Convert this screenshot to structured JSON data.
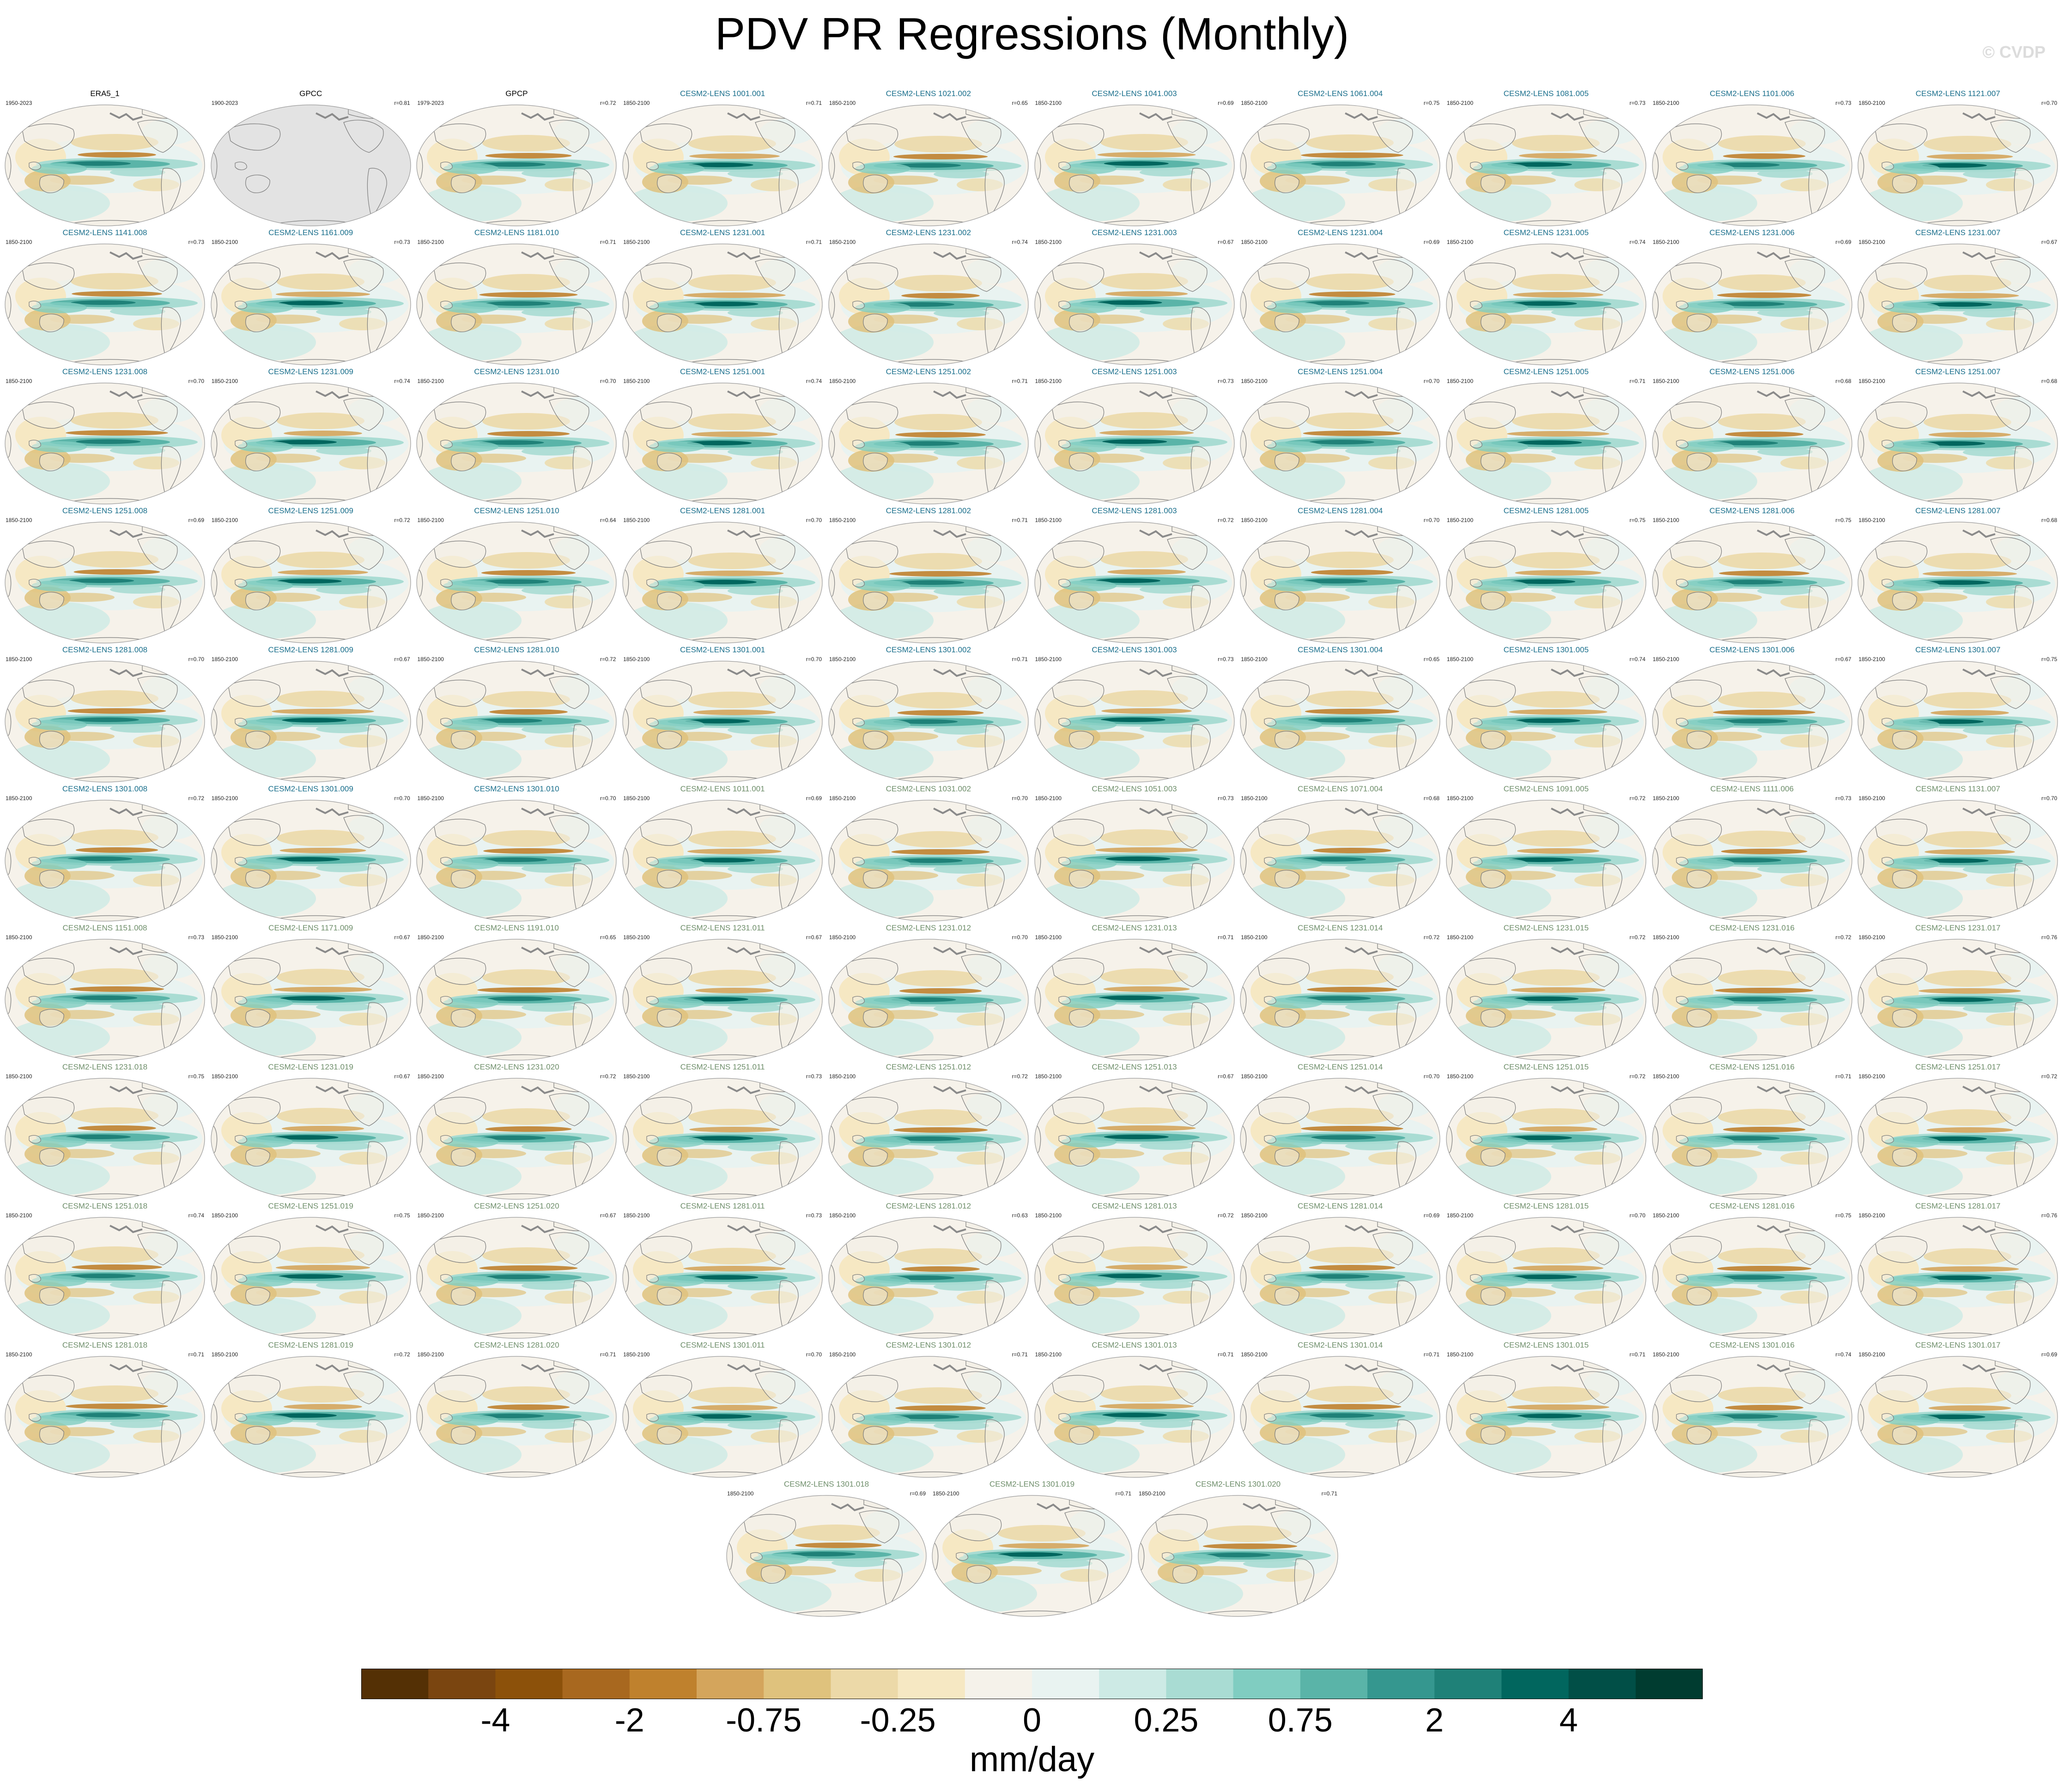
{
  "chart_data": {
    "type": "map-panels",
    "title": "PDV PR Regressions (Monthly)",
    "watermark": "© CVDP",
    "colorbar": {
      "units": "mm/day",
      "tick_labels": [
        "-4",
        "-2",
        "-0.75",
        "-0.25",
        "0",
        "0.25",
        "0.75",
        "2",
        "4"
      ],
      "colors": [
        "#543005",
        "#7a4510",
        "#8c510a",
        "#a8681f",
        "#bf812d",
        "#d4a55c",
        "#dfc27d",
        "#ecd9a8",
        "#f6e8c3",
        "#f5f2ea",
        "#e9f3f1",
        "#cdeae5",
        "#a9dcd3",
        "#80cdc1",
        "#5ab4a8",
        "#35978f",
        "#1f8178",
        "#01665e",
        "#014f47",
        "#003c30"
      ]
    },
    "panels": [
      {
        "title": "ERA5_1",
        "dates": "1950-2023",
        "r": "",
        "group": "obs"
      },
      {
        "title": "GPCC",
        "dates": "1900-2023",
        "r": "r=0.81",
        "group": "obs",
        "missing": true
      },
      {
        "title": "GPCP",
        "dates": "1979-2023",
        "r": "r=0.72",
        "group": "obs"
      },
      {
        "title": "CESM2-LENS 1001.001",
        "dates": "1850-2100",
        "r": "r=0.71",
        "group": "a"
      },
      {
        "title": "CESM2-LENS 1021.002",
        "dates": "1850-2100",
        "r": "r=0.65",
        "group": "a"
      },
      {
        "title": "CESM2-LENS 1041.003",
        "dates": "1850-2100",
        "r": "r=0.69",
        "group": "a"
      },
      {
        "title": "CESM2-LENS 1061.004",
        "dates": "1850-2100",
        "r": "r=0.75",
        "group": "a"
      },
      {
        "title": "CESM2-LENS 1081.005",
        "dates": "1850-2100",
        "r": "r=0.73",
        "group": "a"
      },
      {
        "title": "CESM2-LENS 1101.006",
        "dates": "1850-2100",
        "r": "r=0.73",
        "group": "a"
      },
      {
        "title": "CESM2-LENS 1121.007",
        "dates": "1850-2100",
        "r": "r=0.70",
        "group": "a"
      },
      {
        "title": "CESM2-LENS 1141.008",
        "dates": "1850-2100",
        "r": "r=0.73",
        "group": "a"
      },
      {
        "title": "CESM2-LENS 1161.009",
        "dates": "1850-2100",
        "r": "r=0.73",
        "group": "a"
      },
      {
        "title": "CESM2-LENS 1181.010",
        "dates": "1850-2100",
        "r": "r=0.71",
        "group": "a"
      },
      {
        "title": "CESM2-LENS 1231.001",
        "dates": "1850-2100",
        "r": "r=0.71",
        "group": "a"
      },
      {
        "title": "CESM2-LENS 1231.002",
        "dates": "1850-2100",
        "r": "r=0.74",
        "group": "a"
      },
      {
        "title": "CESM2-LENS 1231.003",
        "dates": "1850-2100",
        "r": "r=0.67",
        "group": "a"
      },
      {
        "title": "CESM2-LENS 1231.004",
        "dates": "1850-2100",
        "r": "r=0.69",
        "group": "a"
      },
      {
        "title": "CESM2-LENS 1231.005",
        "dates": "1850-2100",
        "r": "r=0.74",
        "group": "a"
      },
      {
        "title": "CESM2-LENS 1231.006",
        "dates": "1850-2100",
        "r": "r=0.69",
        "group": "a"
      },
      {
        "title": "CESM2-LENS 1231.007",
        "dates": "1850-2100",
        "r": "r=0.67",
        "group": "a"
      },
      {
        "title": "CESM2-LENS 1231.008",
        "dates": "1850-2100",
        "r": "r=0.70",
        "group": "a"
      },
      {
        "title": "CESM2-LENS 1231.009",
        "dates": "1850-2100",
        "r": "r=0.74",
        "group": "a"
      },
      {
        "title": "CESM2-LENS 1231.010",
        "dates": "1850-2100",
        "r": "r=0.70",
        "group": "a"
      },
      {
        "title": "CESM2-LENS 1251.001",
        "dates": "1850-2100",
        "r": "r=0.74",
        "group": "a"
      },
      {
        "title": "CESM2-LENS 1251.002",
        "dates": "1850-2100",
        "r": "r=0.71",
        "group": "a"
      },
      {
        "title": "CESM2-LENS 1251.003",
        "dates": "1850-2100",
        "r": "r=0.73",
        "group": "a"
      },
      {
        "title": "CESM2-LENS 1251.004",
        "dates": "1850-2100",
        "r": "r=0.70",
        "group": "a"
      },
      {
        "title": "CESM2-LENS 1251.005",
        "dates": "1850-2100",
        "r": "r=0.71",
        "group": "a"
      },
      {
        "title": "CESM2-LENS 1251.006",
        "dates": "1850-2100",
        "r": "r=0.68",
        "group": "a"
      },
      {
        "title": "CESM2-LENS 1251.007",
        "dates": "1850-2100",
        "r": "r=0.68",
        "group": "a"
      },
      {
        "title": "CESM2-LENS 1251.008",
        "dates": "1850-2100",
        "r": "r=0.69",
        "group": "a"
      },
      {
        "title": "CESM2-LENS 1251.009",
        "dates": "1850-2100",
        "r": "r=0.72",
        "group": "a"
      },
      {
        "title": "CESM2-LENS 1251.010",
        "dates": "1850-2100",
        "r": "r=0.64",
        "group": "a"
      },
      {
        "title": "CESM2-LENS 1281.001",
        "dates": "1850-2100",
        "r": "r=0.70",
        "group": "a"
      },
      {
        "title": "CESM2-LENS 1281.002",
        "dates": "1850-2100",
        "r": "r=0.71",
        "group": "a"
      },
      {
        "title": "CESM2-LENS 1281.003",
        "dates": "1850-2100",
        "r": "r=0.72",
        "group": "a"
      },
      {
        "title": "CESM2-LENS 1281.004",
        "dates": "1850-2100",
        "r": "r=0.70",
        "group": "a"
      },
      {
        "title": "CESM2-LENS 1281.005",
        "dates": "1850-2100",
        "r": "r=0.75",
        "group": "a"
      },
      {
        "title": "CESM2-LENS 1281.006",
        "dates": "1850-2100",
        "r": "r=0.75",
        "group": "a"
      },
      {
        "title": "CESM2-LENS 1281.007",
        "dates": "1850-2100",
        "r": "r=0.68",
        "group": "a"
      },
      {
        "title": "CESM2-LENS 1281.008",
        "dates": "1850-2100",
        "r": "r=0.70",
        "group": "a"
      },
      {
        "title": "CESM2-LENS 1281.009",
        "dates": "1850-2100",
        "r": "r=0.67",
        "group": "a"
      },
      {
        "title": "CESM2-LENS 1281.010",
        "dates": "1850-2100",
        "r": "r=0.72",
        "group": "a"
      },
      {
        "title": "CESM2-LENS 1301.001",
        "dates": "1850-2100",
        "r": "r=0.70",
        "group": "a"
      },
      {
        "title": "CESM2-LENS 1301.002",
        "dates": "1850-2100",
        "r": "r=0.71",
        "group": "a"
      },
      {
        "title": "CESM2-LENS 1301.003",
        "dates": "1850-2100",
        "r": "r=0.73",
        "group": "a"
      },
      {
        "title": "CESM2-LENS 1301.004",
        "dates": "1850-2100",
        "r": "r=0.65",
        "group": "a"
      },
      {
        "title": "CESM2-LENS 1301.005",
        "dates": "1850-2100",
        "r": "r=0.74",
        "group": "a"
      },
      {
        "title": "CESM2-LENS 1301.006",
        "dates": "1850-2100",
        "r": "r=0.67",
        "group": "a"
      },
      {
        "title": "CESM2-LENS 1301.007",
        "dates": "1850-2100",
        "r": "r=0.75",
        "group": "a"
      },
      {
        "title": "CESM2-LENS 1301.008",
        "dates": "1850-2100",
        "r": "r=0.72",
        "group": "a"
      },
      {
        "title": "CESM2-LENS 1301.009",
        "dates": "1850-2100",
        "r": "r=0.70",
        "group": "a"
      },
      {
        "title": "CESM2-LENS 1301.010",
        "dates": "1850-2100",
        "r": "r=0.70",
        "group": "a"
      },
      {
        "title": "CESM2-LENS 1011.001",
        "dates": "1850-2100",
        "r": "r=0.69",
        "group": "b"
      },
      {
        "title": "CESM2-LENS 1031.002",
        "dates": "1850-2100",
        "r": "r=0.70",
        "group": "b"
      },
      {
        "title": "CESM2-LENS 1051.003",
        "dates": "1850-2100",
        "r": "r=0.73",
        "group": "b"
      },
      {
        "title": "CESM2-LENS 1071.004",
        "dates": "1850-2100",
        "r": "r=0.68",
        "group": "b"
      },
      {
        "title": "CESM2-LENS 1091.005",
        "dates": "1850-2100",
        "r": "r=0.72",
        "group": "b"
      },
      {
        "title": "CESM2-LENS 1111.006",
        "dates": "1850-2100",
        "r": "r=0.73",
        "group": "b"
      },
      {
        "title": "CESM2-LENS 1131.007",
        "dates": "1850-2100",
        "r": "r=0.70",
        "group": "b"
      },
      {
        "title": "CESM2-LENS 1151.008",
        "dates": "1850-2100",
        "r": "r=0.73",
        "group": "b"
      },
      {
        "title": "CESM2-LENS 1171.009",
        "dates": "1850-2100",
        "r": "r=0.67",
        "group": "b"
      },
      {
        "title": "CESM2-LENS 1191.010",
        "dates": "1850-2100",
        "r": "r=0.65",
        "group": "b"
      },
      {
        "title": "CESM2-LENS 1231.011",
        "dates": "1850-2100",
        "r": "r=0.67",
        "group": "b"
      },
      {
        "title": "CESM2-LENS 1231.012",
        "dates": "1850-2100",
        "r": "r=0.70",
        "group": "b"
      },
      {
        "title": "CESM2-LENS 1231.013",
        "dates": "1850-2100",
        "r": "r=0.71",
        "group": "b"
      },
      {
        "title": "CESM2-LENS 1231.014",
        "dates": "1850-2100",
        "r": "r=0.72",
        "group": "b"
      },
      {
        "title": "CESM2-LENS 1231.015",
        "dates": "1850-2100",
        "r": "r=0.72",
        "group": "b"
      },
      {
        "title": "CESM2-LENS 1231.016",
        "dates": "1850-2100",
        "r": "r=0.72",
        "group": "b"
      },
      {
        "title": "CESM2-LENS 1231.017",
        "dates": "1850-2100",
        "r": "r=0.76",
        "group": "b"
      },
      {
        "title": "CESM2-LENS 1231.018",
        "dates": "1850-2100",
        "r": "r=0.75",
        "group": "b"
      },
      {
        "title": "CESM2-LENS 1231.019",
        "dates": "1850-2100",
        "r": "r=0.67",
        "group": "b"
      },
      {
        "title": "CESM2-LENS 1231.020",
        "dates": "1850-2100",
        "r": "r=0.72",
        "group": "b"
      },
      {
        "title": "CESM2-LENS 1251.011",
        "dates": "1850-2100",
        "r": "r=0.73",
        "group": "b"
      },
      {
        "title": "CESM2-LENS 1251.012",
        "dates": "1850-2100",
        "r": "r=0.72",
        "group": "b"
      },
      {
        "title": "CESM2-LENS 1251.013",
        "dates": "1850-2100",
        "r": "r=0.67",
        "group": "b"
      },
      {
        "title": "CESM2-LENS 1251.014",
        "dates": "1850-2100",
        "r": "r=0.70",
        "group": "b"
      },
      {
        "title": "CESM2-LENS 1251.015",
        "dates": "1850-2100",
        "r": "r=0.72",
        "group": "b"
      },
      {
        "title": "CESM2-LENS 1251.016",
        "dates": "1850-2100",
        "r": "r=0.71",
        "group": "b"
      },
      {
        "title": "CESM2-LENS 1251.017",
        "dates": "1850-2100",
        "r": "r=0.72",
        "group": "b"
      },
      {
        "title": "CESM2-LENS 1251.018",
        "dates": "1850-2100",
        "r": "r=0.74",
        "group": "b"
      },
      {
        "title": "CESM2-LENS 1251.019",
        "dates": "1850-2100",
        "r": "r=0.75",
        "group": "b"
      },
      {
        "title": "CESM2-LENS 1251.020",
        "dates": "1850-2100",
        "r": "r=0.67",
        "group": "b"
      },
      {
        "title": "CESM2-LENS 1281.011",
        "dates": "1850-2100",
        "r": "r=0.73",
        "group": "b"
      },
      {
        "title": "CESM2-LENS 1281.012",
        "dates": "1850-2100",
        "r": "r=0.63",
        "group": "b"
      },
      {
        "title": "CESM2-LENS 1281.013",
        "dates": "1850-2100",
        "r": "r=0.72",
        "group": "b"
      },
      {
        "title": "CESM2-LENS 1281.014",
        "dates": "1850-2100",
        "r": "r=0.69",
        "group": "b"
      },
      {
        "title": "CESM2-LENS 1281.015",
        "dates": "1850-2100",
        "r": "r=0.70",
        "group": "b"
      },
      {
        "title": "CESM2-LENS 1281.016",
        "dates": "1850-2100",
        "r": "r=0.75",
        "group": "b"
      },
      {
        "title": "CESM2-LENS 1281.017",
        "dates": "1850-2100",
        "r": "r=0.76",
        "group": "b"
      },
      {
        "title": "CESM2-LENS 1281.018",
        "dates": "1850-2100",
        "r": "r=0.71",
        "group": "b"
      },
      {
        "title": "CESM2-LENS 1281.019",
        "dates": "1850-2100",
        "r": "r=0.72",
        "group": "b"
      },
      {
        "title": "CESM2-LENS 1281.020",
        "dates": "1850-2100",
        "r": "r=0.71",
        "group": "b"
      },
      {
        "title": "CESM2-LENS 1301.011",
        "dates": "1850-2100",
        "r": "r=0.70",
        "group": "b"
      },
      {
        "title": "CESM2-LENS 1301.012",
        "dates": "1850-2100",
        "r": "r=0.71",
        "group": "b"
      },
      {
        "title": "CESM2-LENS 1301.013",
        "dates": "1850-2100",
        "r": "r=0.71",
        "group": "b"
      },
      {
        "title": "CESM2-LENS 1301.014",
        "dates": "1850-2100",
        "r": "r=0.71",
        "group": "b"
      },
      {
        "title": "CESM2-LENS 1301.015",
        "dates": "1850-2100",
        "r": "r=0.71",
        "group": "b"
      },
      {
        "title": "CESM2-LENS 1301.016",
        "dates": "1850-2100",
        "r": "r=0.74",
        "group": "b"
      },
      {
        "title": "CESM2-LENS 1301.017",
        "dates": "1850-2100",
        "r": "r=0.69",
        "group": "b"
      },
      {
        "title": "CESM2-LENS 1301.018",
        "dates": "1850-2100",
        "r": "r=0.69",
        "group": "b"
      },
      {
        "title": "CESM2-LENS 1301.019",
        "dates": "1850-2100",
        "r": "r=0.71",
        "group": "b"
      },
      {
        "title": "CESM2-LENS 1301.020",
        "dates": "1850-2100",
        "r": "r=0.71",
        "group": "b"
      }
    ]
  },
  "style": {
    "title_colors": {
      "obs": "#000000",
      "a": "#1a6f8c",
      "b": "#6e8e6a"
    },
    "land_fill": "#f3efe4",
    "ocean_fill": "#f6f2ea",
    "coast_color": "#7a7a7a",
    "missing_fill": "#e3e3e3"
  }
}
